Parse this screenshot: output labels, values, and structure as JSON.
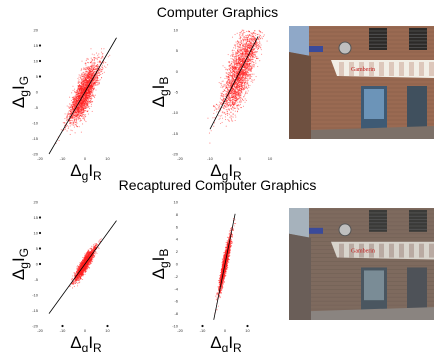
{
  "sections": [
    {
      "title": "Computer Graphics"
    },
    {
      "title": "Recaptured Computer Graphics"
    }
  ],
  "axis_labels": {
    "delta": "Δ",
    "sub_g": "g",
    "letter_i": "I",
    "sub_r": "R",
    "sub_gch": "G",
    "sub_b": "B"
  },
  "chart_data": [
    {
      "type": "scatter",
      "id": "cg_rg",
      "x_channel": "R",
      "y_channel": "G",
      "xlim": [
        -20,
        20
      ],
      "ylim": [
        -20,
        20
      ],
      "xticks": [
        -20,
        -10,
        0,
        10
      ],
      "yticks": [
        -20,
        -15,
        -10,
        -5,
        0,
        5,
        10,
        15,
        20
      ],
      "cloud": {
        "x_range": [
          -8,
          7
        ],
        "slope": 1.15,
        "spread": 3.5,
        "count": 2500
      },
      "fit_line": {
        "x": [
          -16,
          14
        ],
        "slope": 1.25
      },
      "extras": [
        [
          -20,
          15
        ],
        [
          -20,
          10
        ],
        [
          -20,
          5
        ]
      ]
    },
    {
      "type": "scatter",
      "id": "cg_rb",
      "x_channel": "R",
      "y_channel": "B",
      "xlim": [
        -20,
        10
      ],
      "ylim": [
        -20,
        10
      ],
      "xticks": [
        -20,
        -10,
        0,
        10
      ],
      "yticks": [
        -20,
        -15,
        -10,
        -5,
        0,
        5,
        10
      ],
      "cloud": {
        "x_range": [
          -7,
          7
        ],
        "slope": 1.25,
        "spread": 4,
        "count": 2500
      },
      "fit_line": {
        "x": [
          -10,
          6
        ],
        "slope": 1.4
      },
      "extras": []
    },
    {
      "type": "scatter",
      "id": "rcg_rg",
      "x_channel": "R",
      "y_channel": "G",
      "xlim": [
        -20,
        20
      ],
      "ylim": [
        -20,
        20
      ],
      "xticks": [
        -20,
        -10,
        0,
        10
      ],
      "yticks": [
        -20,
        -15,
        -10,
        -5,
        0,
        5,
        10,
        15,
        20
      ],
      "cloud": {
        "x_range": [
          -5,
          5
        ],
        "slope": 1.05,
        "spread": 1.2,
        "count": 2000
      },
      "fit_line": {
        "x": [
          -16,
          14
        ],
        "slope": 1.0
      },
      "extras": [
        [
          -20,
          15
        ],
        [
          -20,
          10
        ],
        [
          -20,
          5
        ],
        [
          -20,
          0
        ],
        [
          -10,
          -20
        ],
        [
          10,
          -20
        ]
      ]
    },
    {
      "type": "scatter",
      "id": "rcg_rb",
      "x_channel": "R",
      "y_channel": "B",
      "xlim": [
        -20,
        20
      ],
      "ylim": [
        -10,
        10
      ],
      "xticks": [
        -20,
        -10,
        0,
        10
      ],
      "yticks": [
        -10,
        -8,
        -6,
        -4,
        -2,
        0,
        2,
        4,
        6,
        8,
        10
      ],
      "cloud": {
        "x_range": [
          -3,
          3
        ],
        "slope": 1.55,
        "spread": 0.9,
        "count": 2000
      },
      "fit_line": {
        "x": [
          -5,
          4.5
        ],
        "slope": 1.8
      },
      "extras": [
        [
          -10,
          -10
        ],
        [
          10,
          -10
        ]
      ]
    }
  ],
  "colors": {
    "points": "#ff1f1f",
    "fit_line": "#000000"
  },
  "photos": [
    {
      "id": "cg_photo",
      "sign": "Gamberin",
      "wall": "#9a6a52",
      "sky": "#8fa8c8",
      "tone": "warm"
    },
    {
      "id": "rcg_photo",
      "sign": "Gamberin",
      "wall": "#7e6a5e",
      "sky": "#a6b2bc",
      "tone": "muted"
    }
  ]
}
